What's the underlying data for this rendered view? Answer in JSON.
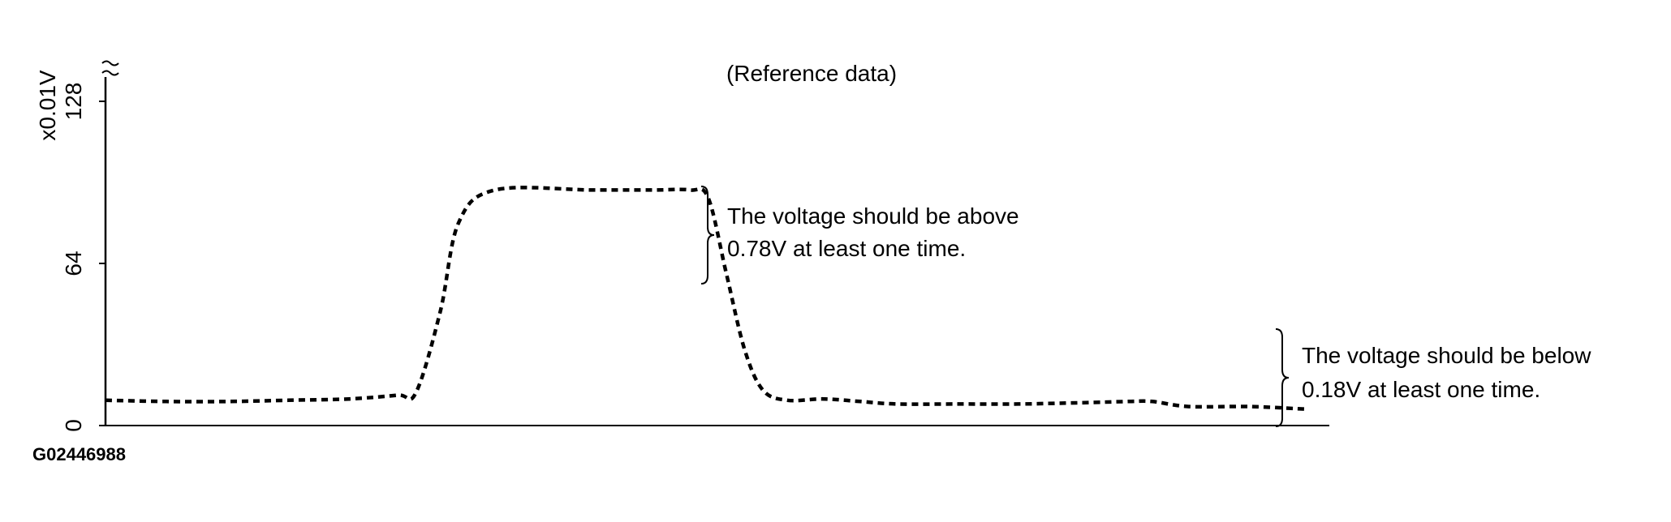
{
  "figure_id": "G02446988",
  "chart_data": {
    "type": "line",
    "title": "(Reference data)",
    "ylabel": "x0.01V",
    "xlabel": "",
    "ylim": [
      0,
      128
    ],
    "y_ticks": [
      0,
      64,
      128
    ],
    "y_tick_labels": [
      "0",
      "64",
      "128"
    ],
    "axis_break": true,
    "grid": false,
    "line_style": "dashed",
    "line_color": "#000000",
    "x": [
      0,
      5,
      10,
      15,
      20,
      24,
      25.5,
      27.5,
      29,
      32,
      40,
      45,
      48,
      49.5,
      51,
      52.5,
      54,
      56,
      59,
      62,
      65,
      70,
      75,
      80,
      84,
      86,
      89,
      94,
      98.5
    ],
    "series": [
      {
        "values": [
          10,
          9.5,
          9.5,
          10,
          10.5,
          12,
          13,
          45,
          80,
          93,
          93,
          93,
          93,
          90,
          60,
          30,
          14,
          10,
          10.5,
          9.5,
          8.5,
          8.5,
          8.5,
          9,
          9.5,
          9.5,
          7.5,
          7.5,
          6.5
        ]
      }
    ],
    "annotations": [
      {
        "lines": [
          "The voltage should be above",
          "0.78V at least one time."
        ]
      },
      {
        "lines": [
          "The voltage should be below",
          "0.18V at least one time."
        ]
      }
    ]
  }
}
